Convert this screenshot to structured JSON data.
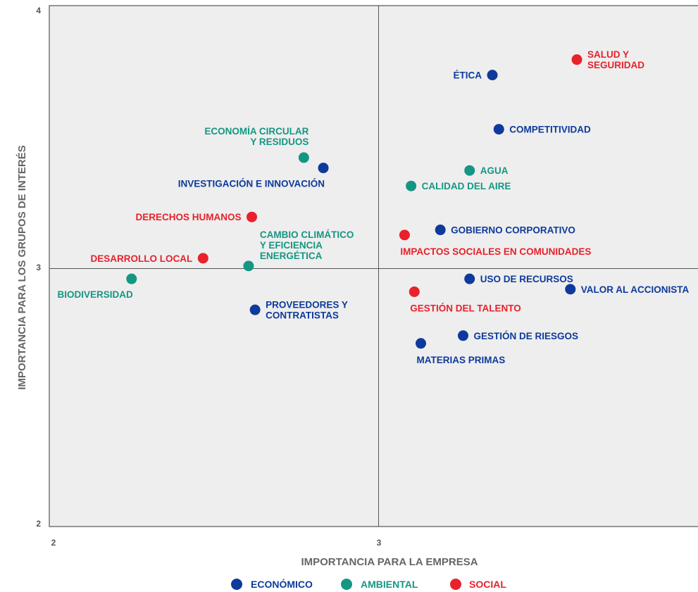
{
  "colors": {
    "economico": "#0d3a9b",
    "ambiental": "#159683",
    "social": "#e8212b",
    "plot_bg": "#eeeeee",
    "axis": "#555555",
    "text": "#555555"
  },
  "chart_data": {
    "type": "scatter",
    "xlabel": "IMPORTANCIA PARA LA EMPRESA",
    "ylabel": "IMPORTANCIA PARA LOS GRUPOS DE INTERÉS",
    "xlim": [
      2,
      4
    ],
    "ylim": [
      2,
      4
    ],
    "x_ticks": [
      "2",
      "3"
    ],
    "y_ticks": [
      "4",
      "3",
      "2"
    ],
    "quadrant_lines": {
      "x": 3,
      "y": 3
    },
    "grid": false,
    "legend_position": "bottom",
    "series": [
      {
        "key": "economico",
        "name": "ECONÓMICO"
      },
      {
        "key": "ambiental",
        "name": "AMBIENTAL"
      },
      {
        "key": "social",
        "name": "SOCIAL"
      }
    ],
    "points": [
      {
        "label": [
          "ÉTICA"
        ],
        "x": 3.35,
        "y": 3.75,
        "series": "economico",
        "label_side": "left"
      },
      {
        "label": [
          "SALUD Y",
          "SEGURIDAD"
        ],
        "x": 3.61,
        "y": 3.81,
        "series": "social",
        "label_side": "right"
      },
      {
        "label": [
          "COMPETITIVIDAD"
        ],
        "x": 3.37,
        "y": 3.54,
        "series": "economico",
        "label_side": "right"
      },
      {
        "label": [
          "ECONOMÍA CIRCULAR",
          "Y RESIDUOS"
        ],
        "x": 2.77,
        "y": 3.43,
        "series": "ambiental",
        "label_side": "above-left"
      },
      {
        "label": [
          "INVESTIGACIÓN E INNOVACIÓN"
        ],
        "x": 2.83,
        "y": 3.39,
        "series": "economico",
        "label_side": "below-left"
      },
      {
        "label": [
          "AGUA"
        ],
        "x": 3.28,
        "y": 3.38,
        "series": "ambiental",
        "label_side": "right"
      },
      {
        "label": [
          "CALIDAD DEL AIRE"
        ],
        "x": 3.1,
        "y": 3.32,
        "series": "ambiental",
        "label_side": "right"
      },
      {
        "label": [
          "DERECHOS HUMANOS"
        ],
        "x": 2.61,
        "y": 3.2,
        "series": "social",
        "label_side": "left"
      },
      {
        "label": [
          "GOBIERNO CORPORATIVO"
        ],
        "x": 3.19,
        "y": 3.15,
        "series": "economico",
        "label_side": "right"
      },
      {
        "label": [
          "IMPACTOS SOCIALES EN COMUNIDADES"
        ],
        "x": 3.08,
        "y": 3.13,
        "series": "social",
        "label_side": "below-right"
      },
      {
        "label": [
          "CAMBIO CLIMÁTICO",
          "Y EFICIENCIA",
          "ENERGÉTICA"
        ],
        "x": 2.6,
        "y": 3.01,
        "series": "ambiental",
        "label_side": "above-right"
      },
      {
        "label": [
          "DESARROLLO LOCAL"
        ],
        "x": 2.46,
        "y": 3.04,
        "series": "social",
        "label_side": "left"
      },
      {
        "label": [
          "BIODIVERSIDAD"
        ],
        "x": 2.24,
        "y": 2.96,
        "series": "ambiental",
        "label_side": "below-left"
      },
      {
        "label": [
          "USO DE RECURSOS"
        ],
        "x": 3.28,
        "y": 2.96,
        "series": "economico",
        "label_side": "right"
      },
      {
        "label": [
          "VALOR AL ACCIONISTA"
        ],
        "x": 3.59,
        "y": 2.92,
        "series": "economico",
        "label_side": "right"
      },
      {
        "label": [
          "GESTIÓN DEL TALENTO"
        ],
        "x": 3.11,
        "y": 2.91,
        "series": "social",
        "label_side": "below-right"
      },
      {
        "label": [
          "PROVEEDORES Y",
          "CONTRATISTAS"
        ],
        "x": 2.62,
        "y": 2.84,
        "series": "economico",
        "label_side": "right"
      },
      {
        "label": [
          "GESTIÓN DE RIESGOS"
        ],
        "x": 3.26,
        "y": 2.74,
        "series": "economico",
        "label_side": "right"
      },
      {
        "label": [
          "MATERIAS PRIMAS"
        ],
        "x": 3.13,
        "y": 2.71,
        "series": "economico",
        "label_side": "below-right"
      }
    ]
  }
}
